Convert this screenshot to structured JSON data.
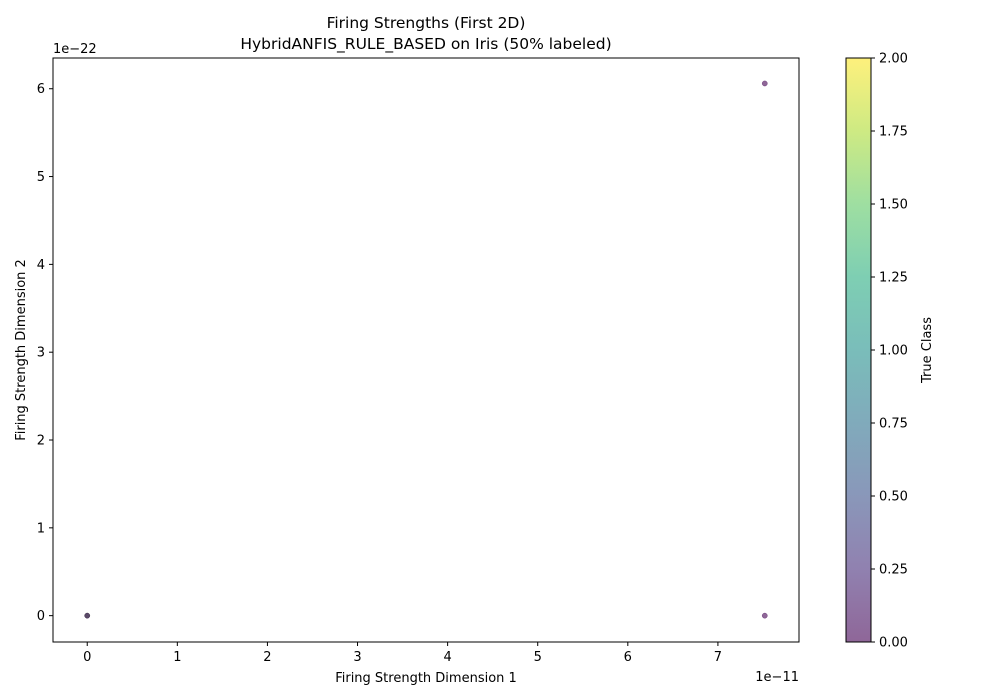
{
  "chart_data": {
    "type": "scatter",
    "title": "Firing Strengths (First 2D)",
    "subtitle": "HybridANFIS_RULE_BASED on Iris (50% labeled)",
    "xlabel": "Firing Strength Dimension 1",
    "ylabel": "Firing Strength Dimension 2",
    "x_offset_label": "1e−11",
    "y_offset_label": "1e−22",
    "x_scale": 1e-11,
    "y_scale": 1e-22,
    "xlim": [
      -0.38,
      7.9
    ],
    "ylim": [
      -0.3,
      6.35
    ],
    "x_ticks": [
      0,
      1,
      2,
      3,
      4,
      5,
      6,
      7
    ],
    "x_tick_labels": [
      "0",
      "1",
      "2",
      "3",
      "4",
      "5",
      "6",
      "7"
    ],
    "y_ticks": [
      0,
      1,
      2,
      3,
      4,
      5,
      6
    ],
    "y_tick_labels": [
      "0",
      "1",
      "2",
      "3",
      "4",
      "5",
      "6"
    ],
    "points": [
      {
        "x": 7.52,
        "y": 6.06,
        "class": 0
      },
      {
        "x": 7.52,
        "y": 0.0,
        "class": 0
      },
      {
        "x": 0.0,
        "y": 0.0,
        "class": 2
      },
      {
        "x": 0.0,
        "y": 0.0,
        "class": 1
      },
      {
        "x": 0.0,
        "y": 0.0,
        "class": 0
      }
    ],
    "point_alpha": 0.6,
    "colorbar": {
      "label": "True Class",
      "range": [
        0.0,
        2.0
      ],
      "ticks": [
        0.0,
        0.25,
        0.5,
        0.75,
        1.0,
        1.25,
        1.5,
        1.75,
        2.0
      ],
      "tick_labels": [
        "0.00",
        "0.25",
        "0.50",
        "0.75",
        "1.00",
        "1.25",
        "1.50",
        "1.75",
        "2.00"
      ],
      "colormap": "viridis"
    },
    "grid": false
  }
}
